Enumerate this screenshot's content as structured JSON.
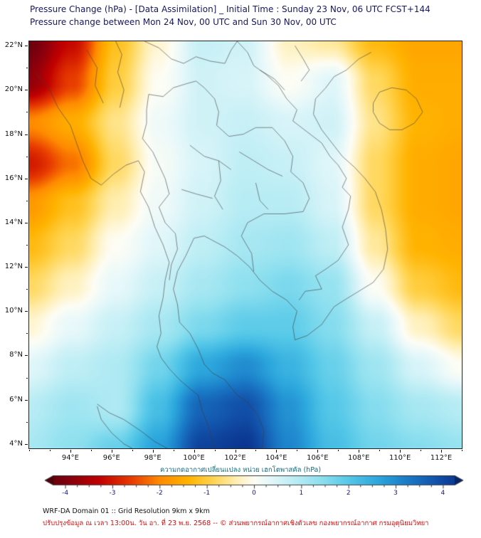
{
  "footer": {
    "line1": "WRF-DA Domain 01 :: Grid Resolution 9km x 9km",
    "line2": "ปรับปรุงข้อมูล ณ เวลา 13:00น. วัน อา. ที่ 23 พ.ย. 2568 -- © ส่วนพยากรณ์อากาศเชิงตัวเลข กองพยากรณ์อากาศ กรมอุตุนิยมวิทยา"
  },
  "chart_data": {
    "type": "heatmap",
    "title": "Pressure Change (hPa) - [Data Assimilation] _ Initial Time : Sunday 23 Nov, 06 UTC FCST+144",
    "subtitle": "Pressure change between Mon 24 Nov, 00 UTC and Sun 30 Nov, 00 UTC",
    "lon_range": [
      92.0,
      113.0
    ],
    "lat_range": [
      3.8,
      22.2
    ],
    "x_ticks": {
      "values": [
        94,
        96,
        98,
        100,
        102,
        104,
        106,
        108,
        110,
        112
      ],
      "labels": [
        "94°E",
        "96°E",
        "98°E",
        "100°E",
        "102°E",
        "104°E",
        "106°E",
        "108°E",
        "110°E",
        "112°E"
      ],
      "minor_step": 1
    },
    "y_ticks": {
      "values": [
        22,
        20,
        18,
        16,
        14,
        12,
        10,
        8,
        6,
        4
      ],
      "labels": [
        "22°N",
        "20°N",
        "18°N",
        "16°N",
        "14°N",
        "12°N",
        "10°N",
        "8°N",
        "6°N",
        "4°N"
      ],
      "minor_step": 1
    },
    "grid": {
      "nx": 11,
      "ny": 11,
      "comment": "pressure change hPa; rows top lat 22.2 to bottom lat 3.8; cols lon 92 to 113; negative=pressure fall (red/yellow), positive=rise (blue)",
      "values": [
        [
          -4.2,
          -3.2,
          -1.2,
          -0.2,
          0.7,
          0.6,
          -0.3,
          -0.5,
          -1.3,
          -1.6,
          -1.6
        ],
        [
          -3.8,
          -2.6,
          -1.0,
          0.0,
          0.6,
          0.5,
          0.0,
          0.4,
          -0.8,
          -1.5,
          -1.5
        ],
        [
          -2.0,
          -1.5,
          -0.6,
          0.2,
          0.6,
          0.7,
          0.5,
          0.6,
          -0.6,
          -1.4,
          -1.5
        ],
        [
          -3.0,
          -2.2,
          -0.8,
          0.1,
          0.5,
          0.8,
          0.7,
          0.4,
          -0.8,
          -1.5,
          -1.6
        ],
        [
          -1.8,
          -1.2,
          -0.4,
          0.2,
          0.6,
          0.9,
          0.9,
          0.5,
          -0.8,
          -1.5,
          -1.6
        ],
        [
          -1.3,
          -0.8,
          0.0,
          0.4,
          0.8,
          1.1,
          1.2,
          0.8,
          -0.5,
          -1.4,
          -1.5
        ],
        [
          -0.8,
          -0.3,
          0.3,
          0.7,
          1.1,
          1.4,
          1.6,
          1.3,
          0.0,
          -1.0,
          -1.3
        ],
        [
          -0.2,
          0.3,
          0.7,
          1.1,
          1.6,
          1.9,
          1.9,
          1.5,
          0.7,
          -0.3,
          -0.8
        ],
        [
          0.4,
          0.8,
          1.0,
          1.7,
          2.6,
          3.0,
          2.4,
          1.8,
          1.2,
          0.5,
          0.0
        ],
        [
          0.9,
          1.2,
          1.0,
          2.2,
          3.6,
          3.9,
          2.9,
          2.0,
          1.5,
          1.1,
          0.9
        ],
        [
          1.1,
          1.4,
          1.8,
          2.7,
          4.1,
          4.3,
          3.1,
          2.2,
          1.7,
          1.5,
          1.3
        ]
      ]
    },
    "colormap": [
      {
        "v": -4.6,
        "c": "#4f0008"
      },
      {
        "v": -4.0,
        "c": "#7f000f"
      },
      {
        "v": -3.3,
        "c": "#c00000"
      },
      {
        "v": -2.6,
        "c": "#e83c00"
      },
      {
        "v": -2.0,
        "c": "#ff8c00"
      },
      {
        "v": -1.4,
        "c": "#ffb300"
      },
      {
        "v": -0.9,
        "c": "#ffd34d"
      },
      {
        "v": -0.4,
        "c": "#ffeeb0"
      },
      {
        "v": 0.0,
        "c": "#fdfdf5"
      },
      {
        "v": 0.3,
        "c": "#e8f8fa"
      },
      {
        "v": 0.8,
        "c": "#bfeef5"
      },
      {
        "v": 1.4,
        "c": "#8fe0ef"
      },
      {
        "v": 2.0,
        "c": "#55c8e8"
      },
      {
        "v": 2.6,
        "c": "#2da8dd"
      },
      {
        "v": 3.2,
        "c": "#1b7ec9"
      },
      {
        "v": 3.8,
        "c": "#1356ae"
      },
      {
        "v": 4.3,
        "c": "#0b3690"
      },
      {
        "v": 4.7,
        "c": "#072566"
      }
    ],
    "colorbar": {
      "label": "ความกดอากาศเปลี่ยนแปลง หน่วย เฮกโตพาสคัล (hPa)",
      "ticks": [
        -4,
        -3,
        -2,
        -1,
        0,
        1,
        2,
        3,
        4
      ],
      "minor_step": 0.25,
      "range": [
        -4.25,
        4.25
      ]
    },
    "outlines": [
      {
        "name": "myanmar-peninsula-west-coast",
        "pts": [
          [
            92.3,
            20.8
          ],
          [
            93.0,
            20.0
          ],
          [
            93.4,
            19.2
          ],
          [
            94.0,
            18.4
          ],
          [
            94.3,
            17.6
          ],
          [
            94.6,
            16.8
          ],
          [
            95.0,
            16.0
          ],
          [
            95.5,
            15.7
          ],
          [
            96.1,
            16.2
          ],
          [
            96.7,
            16.6
          ],
          [
            97.3,
            16.8
          ],
          [
            97.6,
            16.3
          ],
          [
            97.4,
            15.4
          ],
          [
            97.8,
            14.7
          ],
          [
            98.1,
            13.8
          ],
          [
            98.5,
            13.0
          ],
          [
            98.8,
            12.2
          ],
          [
            98.6,
            11.4
          ],
          [
            98.5,
            10.6
          ],
          [
            98.3,
            9.8
          ],
          [
            98.4,
            9.0
          ],
          [
            98.2,
            8.4
          ],
          [
            98.4,
            7.9
          ],
          [
            98.8,
            7.4
          ],
          [
            99.3,
            6.9
          ],
          [
            99.8,
            6.5
          ],
          [
            100.2,
            6.2
          ],
          [
            100.4,
            5.5
          ],
          [
            100.7,
            4.8
          ],
          [
            101.0,
            3.8
          ]
        ]
      },
      {
        "name": "gulf-vietnam-coast",
        "pts": [
          [
            103.3,
            3.8
          ],
          [
            103.4,
            4.6
          ],
          [
            103.1,
            5.3
          ],
          [
            102.6,
            5.9
          ],
          [
            102.1,
            6.2
          ],
          [
            101.5,
            6.9
          ],
          [
            100.9,
            7.2
          ],
          [
            100.5,
            7.6
          ],
          [
            100.2,
            8.3
          ],
          [
            99.8,
            9.0
          ],
          [
            99.3,
            9.5
          ],
          [
            99.2,
            10.3
          ],
          [
            99.0,
            11.0
          ],
          [
            99.2,
            11.8
          ],
          [
            99.6,
            12.5
          ],
          [
            100.0,
            13.3
          ],
          [
            100.5,
            13.4
          ],
          [
            100.9,
            13.2
          ],
          [
            101.5,
            12.9
          ],
          [
            102.1,
            12.5
          ],
          [
            102.7,
            12.0
          ],
          [
            103.2,
            11.4
          ],
          [
            103.8,
            10.9
          ],
          [
            104.5,
            10.5
          ],
          [
            105.0,
            10.0
          ],
          [
            104.8,
            9.3
          ],
          [
            104.9,
            8.7
          ],
          [
            105.5,
            8.9
          ],
          [
            106.2,
            9.4
          ],
          [
            106.8,
            10.2
          ],
          [
            107.3,
            10.5
          ],
          [
            108.0,
            10.9
          ],
          [
            108.7,
            11.3
          ],
          [
            109.2,
            11.9
          ],
          [
            109.4,
            12.8
          ],
          [
            109.3,
            13.7
          ],
          [
            109.1,
            14.6
          ],
          [
            108.8,
            15.4
          ],
          [
            108.3,
            16.0
          ],
          [
            107.8,
            16.5
          ],
          [
            107.2,
            17.0
          ],
          [
            106.7,
            17.6
          ],
          [
            106.2,
            18.2
          ],
          [
            105.8,
            18.9
          ],
          [
            105.9,
            19.6
          ],
          [
            106.4,
            20.1
          ],
          [
            106.8,
            20.6
          ],
          [
            107.4,
            20.9
          ],
          [
            108.0,
            21.4
          ],
          [
            108.6,
            21.7
          ]
        ]
      },
      {
        "name": "hainan-island",
        "pts": [
          [
            108.7,
            19.4
          ],
          [
            109.0,
            19.9
          ],
          [
            109.6,
            20.1
          ],
          [
            110.3,
            20.0
          ],
          [
            110.8,
            19.6
          ],
          [
            111.1,
            19.0
          ],
          [
            110.7,
            18.5
          ],
          [
            110.1,
            18.2
          ],
          [
            109.5,
            18.2
          ],
          [
            109.0,
            18.5
          ],
          [
            108.7,
            19.0
          ],
          [
            108.7,
            19.4
          ]
        ]
      },
      {
        "name": "sumatra-north-coast",
        "pts": [
          [
            95.3,
            5.8
          ],
          [
            95.9,
            5.4
          ],
          [
            96.6,
            5.1
          ],
          [
            97.4,
            4.6
          ],
          [
            98.1,
            4.1
          ],
          [
            98.7,
            3.8
          ]
        ]
      },
      {
        "name": "sumatra-west-coast",
        "pts": [
          [
            95.3,
            5.7
          ],
          [
            95.5,
            5.1
          ],
          [
            96.0,
            4.5
          ],
          [
            96.6,
            4.0
          ],
          [
            97.0,
            3.8
          ]
        ]
      },
      {
        "name": "thai-lao-border-mekong",
        "pts": [
          [
            100.1,
            20.4
          ],
          [
            100.5,
            20.1
          ],
          [
            101.0,
            19.6
          ],
          [
            101.2,
            19.0
          ],
          [
            101.1,
            18.4
          ],
          [
            101.7,
            17.9
          ],
          [
            102.4,
            18.0
          ],
          [
            103.0,
            18.3
          ],
          [
            103.8,
            18.3
          ],
          [
            104.4,
            17.7
          ],
          [
            104.8,
            17.0
          ],
          [
            104.7,
            16.3
          ],
          [
            105.3,
            15.8
          ],
          [
            105.6,
            15.1
          ],
          [
            105.3,
            14.5
          ]
        ]
      },
      {
        "name": "thai-cambodia-border",
        "pts": [
          [
            105.3,
            14.5
          ],
          [
            104.4,
            14.4
          ],
          [
            103.4,
            14.4
          ],
          [
            102.6,
            14.0
          ],
          [
            102.3,
            13.4
          ],
          [
            102.8,
            12.6
          ],
          [
            102.9,
            11.8
          ]
        ]
      },
      {
        "name": "cambodia-vietnam-border",
        "pts": [
          [
            107.5,
            14.6
          ],
          [
            107.2,
            13.8
          ],
          [
            107.5,
            13.0
          ],
          [
            107.0,
            12.3
          ],
          [
            106.4,
            11.9
          ],
          [
            105.9,
            11.6
          ],
          [
            106.2,
            11.0
          ],
          [
            105.4,
            10.9
          ],
          [
            105.1,
            10.5
          ]
        ]
      },
      {
        "name": "laos-vietnam-border",
        "pts": [
          [
            102.1,
            22.2
          ],
          [
            102.6,
            21.7
          ],
          [
            102.9,
            21.1
          ],
          [
            103.5,
            20.7
          ],
          [
            104.1,
            20.2
          ],
          [
            104.5,
            19.6
          ],
          [
            105.0,
            19.1
          ],
          [
            104.8,
            18.6
          ],
          [
            105.5,
            18.1
          ],
          [
            106.2,
            17.6
          ],
          [
            106.6,
            17.0
          ],
          [
            107.0,
            16.6
          ],
          [
            107.4,
            16.0
          ],
          [
            107.2,
            15.6
          ],
          [
            107.6,
            15.2
          ],
          [
            107.5,
            14.6
          ]
        ]
      },
      {
        "name": "china-border",
        "pts": [
          [
            97.6,
            22.2
          ],
          [
            98.3,
            21.9
          ],
          [
            98.9,
            21.4
          ],
          [
            99.5,
            21.2
          ],
          [
            100.1,
            21.5
          ],
          [
            100.8,
            21.3
          ],
          [
            101.5,
            21.2
          ],
          [
            101.8,
            21.8
          ],
          [
            102.1,
            22.2
          ]
        ]
      },
      {
        "name": "myanmar-thai-border",
        "pts": [
          [
            97.8,
            19.8
          ],
          [
            97.7,
            19.1
          ],
          [
            97.7,
            18.5
          ],
          [
            97.5,
            17.8
          ],
          [
            98.0,
            17.2
          ],
          [
            98.3,
            16.6
          ],
          [
            98.6,
            16.0
          ],
          [
            98.8,
            15.3
          ],
          [
            98.3,
            14.7
          ],
          [
            98.6,
            14.0
          ],
          [
            99.1,
            13.5
          ],
          [
            99.2,
            12.8
          ],
          [
            98.9,
            12.1
          ],
          [
            98.8,
            11.4
          ]
        ]
      },
      {
        "name": "myanmar-thai-lao-north-border",
        "pts": [
          [
            97.8,
            19.8
          ],
          [
            98.5,
            19.7
          ],
          [
            99.0,
            20.1
          ],
          [
            99.7,
            20.3
          ],
          [
            100.1,
            20.4
          ]
        ]
      },
      {
        "name": "province-line-1",
        "pts": [
          [
            99.8,
            17.5
          ],
          [
            100.5,
            17.0
          ],
          [
            101.2,
            16.8
          ],
          [
            101.8,
            16.4
          ]
        ]
      },
      {
        "name": "province-line-2",
        "pts": [
          [
            101.2,
            16.8
          ],
          [
            101.3,
            15.9
          ],
          [
            101.0,
            15.2
          ],
          [
            101.4,
            14.6
          ]
        ]
      },
      {
        "name": "province-line-3",
        "pts": [
          [
            99.4,
            15.5
          ],
          [
            100.1,
            15.3
          ],
          [
            100.9,
            15.1
          ]
        ]
      },
      {
        "name": "province-line-4",
        "pts": [
          [
            102.2,
            17.2
          ],
          [
            102.9,
            16.8
          ],
          [
            103.6,
            16.4
          ],
          [
            104.3,
            16.1
          ]
        ]
      },
      {
        "name": "province-line-5",
        "pts": [
          [
            103.0,
            15.8
          ],
          [
            103.2,
            15.0
          ],
          [
            103.6,
            14.6
          ]
        ]
      },
      {
        "name": "province-line-6",
        "pts": [
          [
            96.2,
            22.2
          ],
          [
            96.5,
            21.6
          ],
          [
            96.3,
            20.8
          ],
          [
            96.6,
            20.0
          ],
          [
            96.4,
            19.2
          ]
        ]
      },
      {
        "name": "province-line-7",
        "pts": [
          [
            94.8,
            21.8
          ],
          [
            95.3,
            21.0
          ],
          [
            95.2,
            20.2
          ],
          [
            95.6,
            19.4
          ]
        ]
      },
      {
        "name": "province-line-8",
        "pts": [
          [
            104.9,
            22.0
          ],
          [
            105.3,
            21.4
          ],
          [
            105.6,
            20.9
          ],
          [
            105.2,
            20.4
          ]
        ]
      },
      {
        "name": "province-line-9",
        "pts": [
          [
            103.2,
            20.9
          ],
          [
            103.9,
            20.5
          ],
          [
            104.4,
            20.0
          ]
        ]
      }
    ]
  }
}
